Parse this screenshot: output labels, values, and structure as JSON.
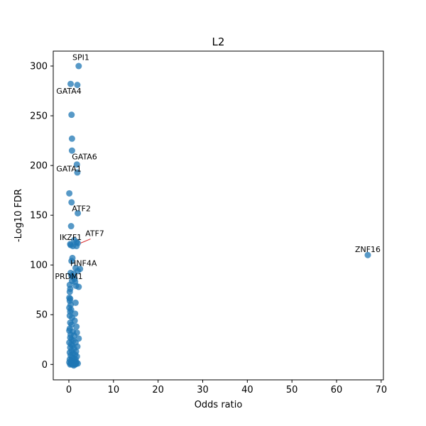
{
  "chart_data": {
    "type": "scatter",
    "title": "L2",
    "xlabel": "Odds ratio",
    "ylabel": "-Log10 FDR",
    "xlim": [
      -3.5,
      70.5
    ],
    "ylim": [
      -15.5,
      315
    ],
    "xticks": [
      0,
      10,
      20,
      30,
      40,
      50,
      60,
      70
    ],
    "yticks": [
      0,
      50,
      100,
      150,
      200,
      250,
      300
    ],
    "grid": false,
    "point_color": "#1f77b4",
    "leader_color": "#d62728",
    "points": [
      {
        "x": 2.2,
        "y": 300
      },
      {
        "x": 0.4,
        "y": 282
      },
      {
        "x": 1.9,
        "y": 281
      },
      {
        "x": 0.6,
        "y": 251
      },
      {
        "x": 0.7,
        "y": 227
      },
      {
        "x": 0.7,
        "y": 215
      },
      {
        "x": 1.8,
        "y": 201
      },
      {
        "x": 1.9,
        "y": 193
      },
      {
        "x": 0.1,
        "y": 172
      },
      {
        "x": 0.6,
        "y": 163
      },
      {
        "x": 2.0,
        "y": 152
      },
      {
        "x": 0.5,
        "y": 139
      },
      {
        "x": 0.3,
        "y": 121
      },
      {
        "x": 0.4,
        "y": 120
      },
      {
        "x": 1.2,
        "y": 125
      },
      {
        "x": 1.7,
        "y": 123
      },
      {
        "x": 2.0,
        "y": 122
      },
      {
        "x": 1.7,
        "y": 119
      },
      {
        "x": 0.9,
        "y": 119
      },
      {
        "x": 0.8,
        "y": 107
      },
      {
        "x": 0.6,
        "y": 104
      },
      {
        "x": 67.0,
        "y": 110
      },
      {
        "x": 1.5,
        "y": 97
      },
      {
        "x": 2.5,
        "y": 96
      },
      {
        "x": 2.0,
        "y": 94
      },
      {
        "x": 0.4,
        "y": 92
      },
      {
        "x": 1.1,
        "y": 91
      },
      {
        "x": 0.6,
        "y": 89
      },
      {
        "x": 0.9,
        "y": 88
      },
      {
        "x": 1.3,
        "y": 86
      },
      {
        "x": 0.7,
        "y": 84
      },
      {
        "x": 1.4,
        "y": 83
      },
      {
        "x": 0.2,
        "y": 80
      },
      {
        "x": 1.6,
        "y": 79
      },
      {
        "x": 2.2,
        "y": 78
      },
      {
        "x": 0.3,
        "y": 76
      },
      {
        "x": 0.2,
        "y": 73
      },
      {
        "x": 0.1,
        "y": 67
      },
      {
        "x": 0.3,
        "y": 66
      },
      {
        "x": 0.2,
        "y": 64
      },
      {
        "x": 1.5,
        "y": 62
      },
      {
        "x": 0.4,
        "y": 60
      },
      {
        "x": 0.1,
        "y": 57
      },
      {
        "x": 0.5,
        "y": 55
      },
      {
        "x": 0.3,
        "y": 53
      },
      {
        "x": 1.4,
        "y": 51
      },
      {
        "x": 0.2,
        "y": 49
      },
      {
        "x": 0.7,
        "y": 47
      },
      {
        "x": 1.3,
        "y": 44
      },
      {
        "x": 0.3,
        "y": 42
      },
      {
        "x": 0.6,
        "y": 40
      },
      {
        "x": 1.7,
        "y": 38
      },
      {
        "x": 0.2,
        "y": 36
      },
      {
        "x": 0.1,
        "y": 34
      },
      {
        "x": 0.9,
        "y": 33
      },
      {
        "x": 1.8,
        "y": 32
      },
      {
        "x": 0.4,
        "y": 30
      },
      {
        "x": 1.2,
        "y": 29
      },
      {
        "x": 0.3,
        "y": 27
      },
      {
        "x": 2.2,
        "y": 26
      },
      {
        "x": 0.6,
        "y": 25
      },
      {
        "x": 1.0,
        "y": 24
      },
      {
        "x": 0.1,
        "y": 22
      },
      {
        "x": 1.5,
        "y": 22
      },
      {
        "x": 0.5,
        "y": 20
      },
      {
        "x": 0.8,
        "y": 19
      },
      {
        "x": 1.9,
        "y": 18
      },
      {
        "x": 0.3,
        "y": 17
      },
      {
        "x": 1.2,
        "y": 16
      },
      {
        "x": 0.6,
        "y": 14
      },
      {
        "x": 1.6,
        "y": 13
      },
      {
        "x": 0.2,
        "y": 12
      },
      {
        "x": 0.9,
        "y": 11
      },
      {
        "x": 1.4,
        "y": 10
      },
      {
        "x": 0.4,
        "y": 9
      },
      {
        "x": 1.8,
        "y": 8
      },
      {
        "x": 0.7,
        "y": 7
      },
      {
        "x": 1.1,
        "y": 6
      },
      {
        "x": 0.2,
        "y": 5
      },
      {
        "x": 1.5,
        "y": 5
      },
      {
        "x": 0.5,
        "y": 4
      },
      {
        "x": 0.9,
        "y": 3
      },
      {
        "x": 1.3,
        "y": 3
      },
      {
        "x": 0.1,
        "y": 2
      },
      {
        "x": 0.7,
        "y": 2
      },
      {
        "x": 1.7,
        "y": 2
      },
      {
        "x": 2.0,
        "y": 1
      },
      {
        "x": 0.4,
        "y": 1
      },
      {
        "x": 1.0,
        "y": 1
      },
      {
        "x": 1.2,
        "y": 0.5
      },
      {
        "x": 0.6,
        "y": 0.3
      },
      {
        "x": 0.8,
        "y": 0
      },
      {
        "x": 1.4,
        "y": 0
      },
      {
        "x": 1.6,
        "y": 0.5
      },
      {
        "x": 0.3,
        "y": 0
      },
      {
        "x": 1.1,
        "y": -1
      }
    ],
    "annotations": [
      {
        "text": "SPI1",
        "x": 2.2,
        "y": 300,
        "label_x": 2.7,
        "label_y": 306,
        "leader": false
      },
      {
        "text": "GATA4",
        "x": 0.4,
        "y": 282,
        "label_x": 0.0,
        "label_y": 272,
        "leader": false
      },
      {
        "text": "GATA6",
        "x": 1.8,
        "y": 201,
        "label_x": 3.5,
        "label_y": 206,
        "leader": false
      },
      {
        "text": "GATA1",
        "x": 1.9,
        "y": 193,
        "label_x": 0.0,
        "label_y": 194,
        "leader": false
      },
      {
        "text": "ATF2",
        "x": 2.0,
        "y": 152,
        "label_x": 2.8,
        "label_y": 154,
        "leader": false
      },
      {
        "text": "ATF7",
        "x": 2.0,
        "y": 122,
        "label_x": 5.8,
        "label_y": 129,
        "leader": true
      },
      {
        "text": "IKZF1",
        "x": 0.3,
        "y": 121,
        "label_x": 0.4,
        "label_y": 125,
        "leader": false
      },
      {
        "text": "HNF4A",
        "x": 1.5,
        "y": 97,
        "label_x": 3.3,
        "label_y": 99,
        "leader": false
      },
      {
        "text": "PRDM1",
        "x": 0.2,
        "y": 80,
        "label_x": 0.0,
        "label_y": 86,
        "leader": false
      },
      {
        "text": "ZNF16",
        "x": 67.0,
        "y": 110,
        "label_x": 67.0,
        "label_y": 113,
        "leader": false
      }
    ]
  }
}
